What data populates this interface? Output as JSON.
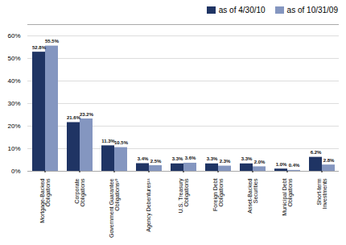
{
  "chart_data": {
    "type": "bar",
    "categories": [
      "Mortgage-Backed\nObligations",
      "Corporate\nObligations",
      "Government Guarantee\nObligations¹⁰",
      "Agency Debentures¹¹",
      "U.S. Treasury\nObligations",
      "Foreign Debt\nObligations",
      "Asset-Backed\nSecurities",
      "Municipal Debt\nObligations",
      "Short-term\nInvestments"
    ],
    "series": [
      {
        "name": "as of 4/30/10",
        "color": "#1f3464",
        "values": [
          52.8,
          21.6,
          11.3,
          3.4,
          3.3,
          3.3,
          3.3,
          1.0,
          6.2
        ],
        "value_labels": [
          "52.8%",
          "21.6%",
          "11.3%",
          "3.4%",
          "3.3%",
          "3.3%",
          "3.3%",
          "1.0%",
          "6.2%"
        ]
      },
      {
        "name": "as of 10/31/09",
        "color": "#8496c0",
        "values": [
          55.5,
          23.2,
          10.5,
          2.5,
          3.6,
          2.3,
          2.0,
          0.4,
          2.8
        ],
        "value_labels": [
          "55.5%",
          "23.2%",
          "10.5%",
          "2.5%",
          "3.6%",
          "2.3%",
          "2.0%",
          "0.4%",
          "2.8%"
        ]
      }
    ],
    "ylim": [
      0,
      65
    ],
    "yticks": [
      {
        "value": 0,
        "label": "0%"
      },
      {
        "value": 10,
        "label": "10%"
      },
      {
        "value": 20,
        "label": "20%"
      },
      {
        "value": 30,
        "label": "30%"
      },
      {
        "value": 40,
        "label": "40%"
      },
      {
        "value": 50,
        "label": "50%"
      },
      {
        "value": 60,
        "label": "60%"
      }
    ],
    "grid": true,
    "legend": "upper right",
    "data_labels": true
  }
}
